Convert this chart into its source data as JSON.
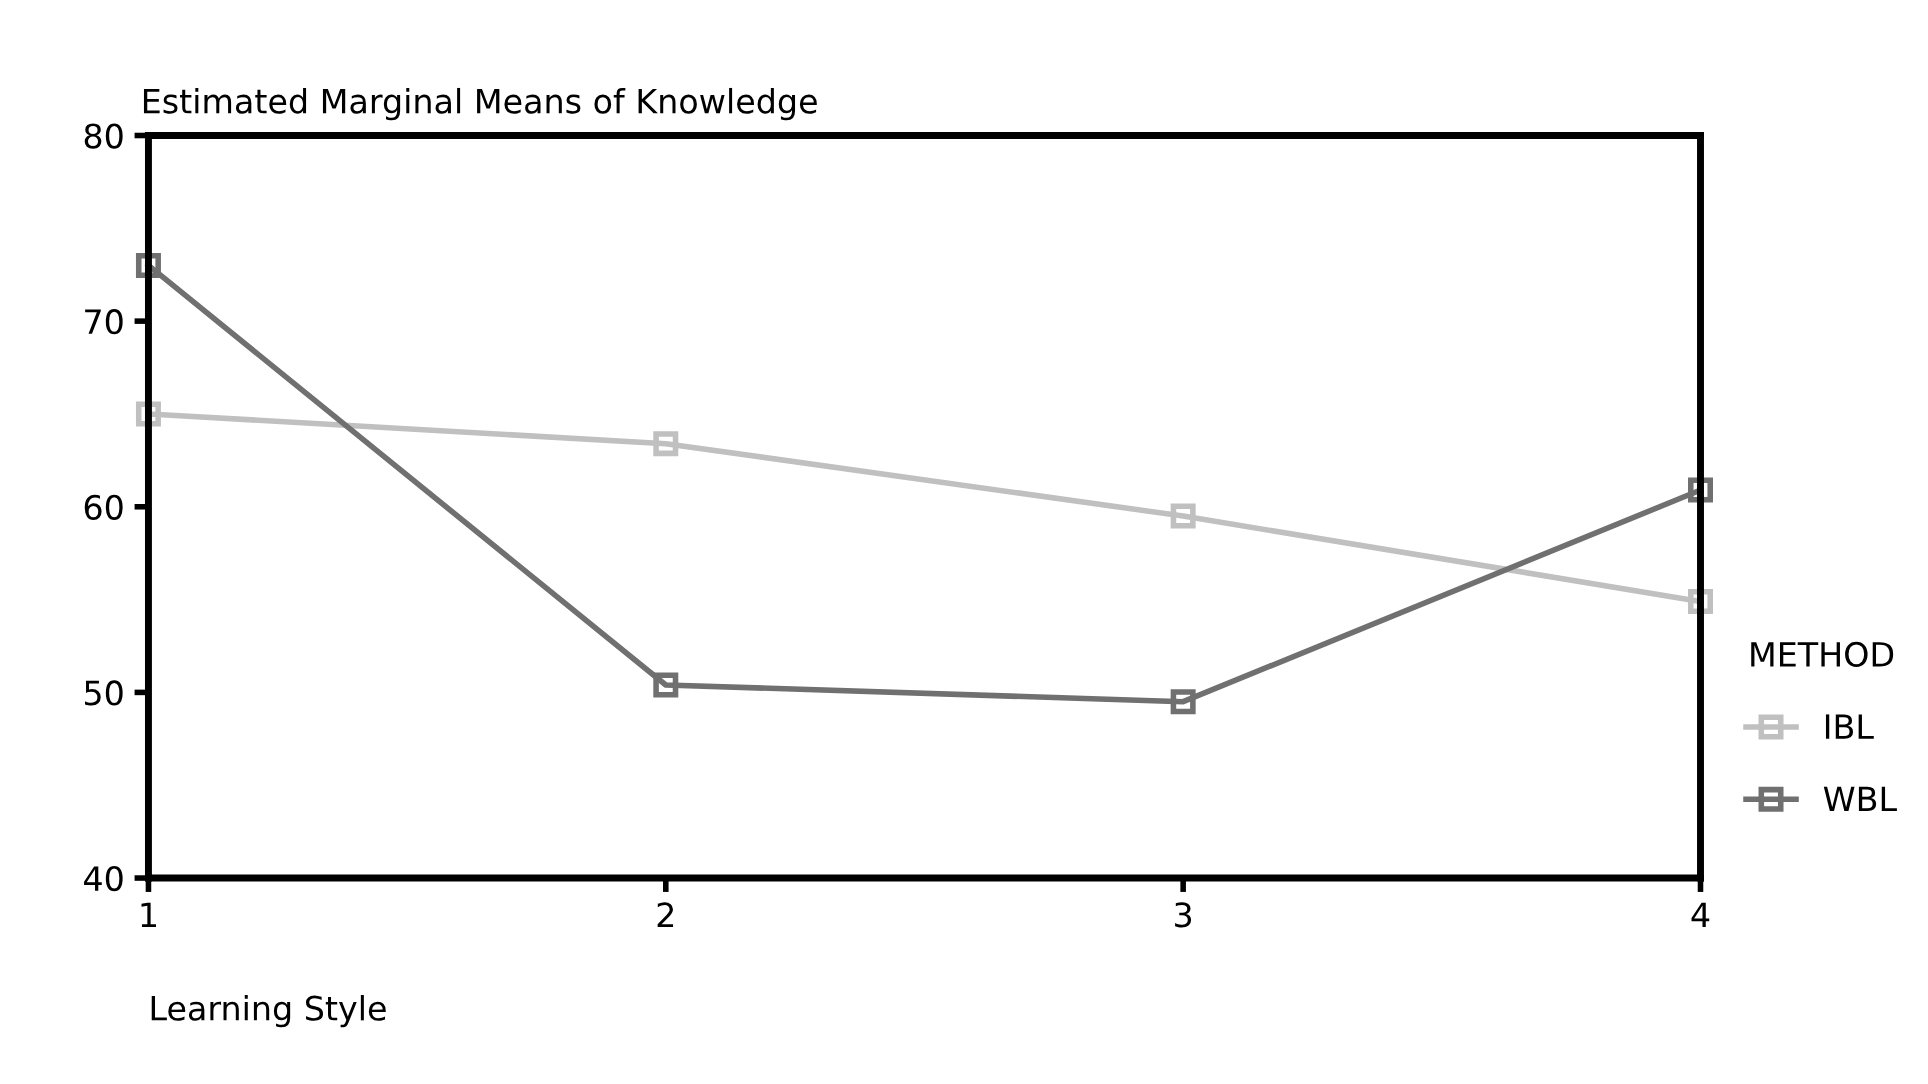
{
  "chart_data": {
    "type": "line",
    "title": "Estimated Marginal Means of Knowledge",
    "xlabel": "Learning Style",
    "legend_title": "METHOD",
    "x": [
      1,
      2,
      3,
      4
    ],
    "series": [
      {
        "name": "IBL",
        "color": "#c0c0c0",
        "values": [
          65.0,
          63.4,
          59.5,
          54.9
        ]
      },
      {
        "name": "WBL",
        "color": "#707070",
        "values": [
          73.0,
          50.4,
          49.5,
          60.9
        ]
      }
    ],
    "xlim": [
      1,
      4
    ],
    "xticks": [
      1,
      2,
      3,
      4
    ],
    "ylim": [
      40,
      80
    ],
    "yticks": [
      40,
      50,
      60,
      70,
      80
    ],
    "marker": "square",
    "line_style": "solid",
    "grid": false,
    "legend": "right"
  }
}
